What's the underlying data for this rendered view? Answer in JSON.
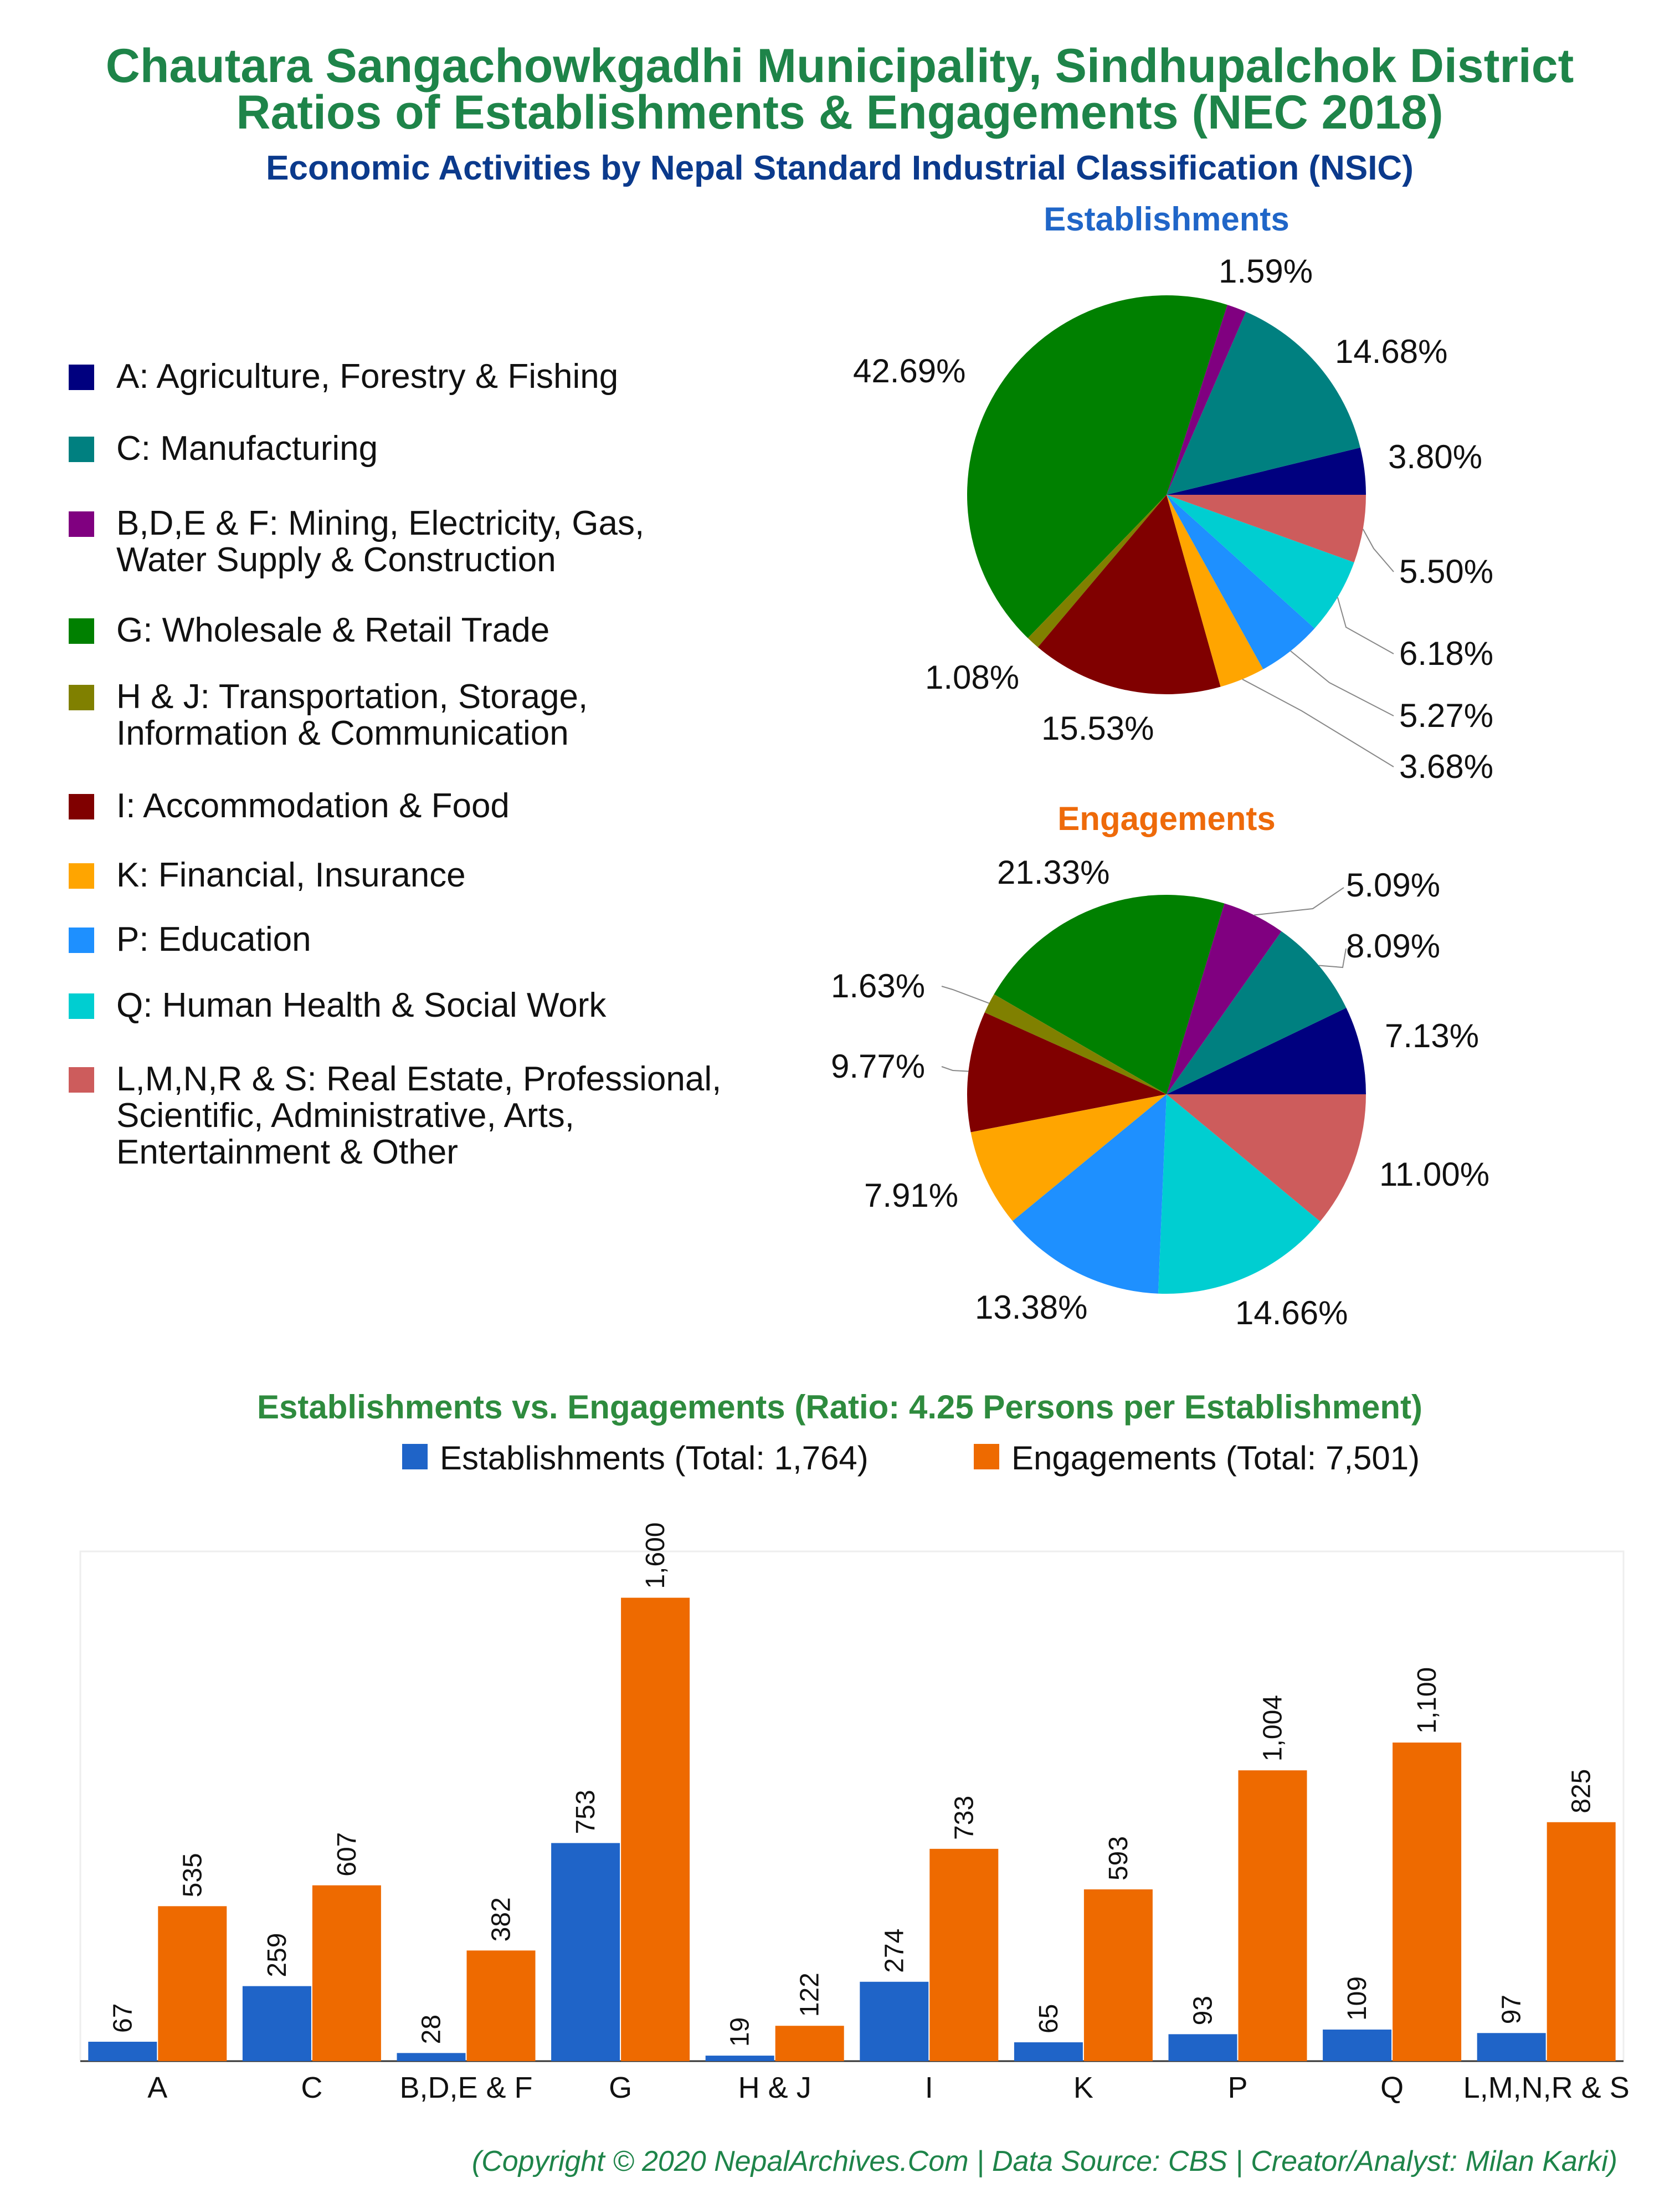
{
  "header": {
    "title_line1": "Chautara Sangachowkgadhi Municipality, Sindhupalchok District",
    "title_line2": "Ratios of Establishments & Engagements (NEC 2018)",
    "subtitle": "Economic Activities by Nepal Standard Industrial Classification (NSIC)"
  },
  "colors": {
    "title": "#1e8449",
    "subtitle": "#0b3a8c",
    "establishments_title": "#2066c8",
    "engagements_title": "#ee6a0a",
    "establishments_bar": "#1f64c8",
    "engagements_bar": "#ee6a00"
  },
  "legend": [
    {
      "label_lines": [
        "A: Agriculture, Forestry & Fishing"
      ],
      "color": "#00007f"
    },
    {
      "label_lines": [
        "C: Manufacturing"
      ],
      "color": "#008080"
    },
    {
      "label_lines": [
        "B,D,E & F: Mining, Electricity, Gas,",
        "Water Supply & Construction"
      ],
      "color": "#800080"
    },
    {
      "label_lines": [
        "G: Wholesale & Retail Trade"
      ],
      "color": "#008000"
    },
    {
      "label_lines": [
        "H & J: Transportation, Storage,",
        "Information & Communication"
      ],
      "color": "#808000"
    },
    {
      "label_lines": [
        "I: Accommodation & Food"
      ],
      "color": "#800000"
    },
    {
      "label_lines": [
        "K: Financial, Insurance"
      ],
      "color": "#ffa500"
    },
    {
      "label_lines": [
        "P: Education"
      ],
      "color": "#1e90ff"
    },
    {
      "label_lines": [
        "Q: Human Health & Social Work"
      ],
      "color": "#00ced1"
    },
    {
      "label_lines": [
        "L,M,N,R & S: Real Estate, Professional,",
        "Scientific, Administrative, Arts,",
        "Entertainment & Other"
      ],
      "color": "#cd5c5c"
    }
  ],
  "chart_data": [
    {
      "type": "pie",
      "title": "Establishments",
      "labels": [
        "A",
        "C",
        "B,D,E & F",
        "G",
        "H & J",
        "I",
        "K",
        "P",
        "Q",
        "L,M,N,R & S"
      ],
      "values": [
        3.8,
        14.68,
        1.59,
        42.69,
        1.08,
        15.53,
        3.68,
        5.27,
        6.18,
        5.5
      ],
      "value_labels": [
        "3.80%",
        "14.68%",
        "1.59%",
        "42.69%",
        "1.08%",
        "15.53%",
        "3.68%",
        "5.27%",
        "6.18%",
        "5.50%"
      ]
    },
    {
      "type": "pie",
      "title": "Engagements",
      "labels": [
        "A",
        "C",
        "B,D,E & F",
        "G",
        "H & J",
        "I",
        "K",
        "P",
        "Q",
        "L,M,N,R & S"
      ],
      "values": [
        7.13,
        8.09,
        5.09,
        21.33,
        1.63,
        9.77,
        7.91,
        13.38,
        14.66,
        11.0
      ],
      "value_labels": [
        "7.13%",
        "8.09%",
        "5.09%",
        "21.33%",
        "1.63%",
        "9.77%",
        "7.91%",
        "13.38%",
        "14.66%",
        "11.00%"
      ]
    },
    {
      "type": "bar",
      "title": "Establishments vs. Engagements (Ratio: 4.25 Persons per Establishment)",
      "categories": [
        "A",
        "C",
        "B,D,E & F",
        "G",
        "H & J",
        "I",
        "K",
        "P",
        "Q",
        "L,M,N,R & S"
      ],
      "series": [
        {
          "name": "Establishments (Total: 1,764)",
          "values": [
            67,
            259,
            28,
            753,
            19,
            274,
            65,
            93,
            109,
            97
          ],
          "value_labels": [
            "67",
            "259",
            "28",
            "753",
            "19",
            "274",
            "65",
            "93",
            "109",
            "97"
          ]
        },
        {
          "name": "Engagements (Total: 7,501)",
          "values": [
            535,
            607,
            382,
            1600,
            122,
            733,
            593,
            1004,
            1100,
            825
          ],
          "value_labels": [
            "535",
            "607",
            "382",
            "1,600",
            "122",
            "733",
            "593",
            "1,004",
            "1,100",
            "825"
          ]
        }
      ],
      "ylim": [
        0,
        1760
      ],
      "legend": "top-right",
      "grid": false
    }
  ],
  "footer": {
    "credit": "(Copyright © 2020 NepalArchives.Com | Data Source: CBS | Creator/Analyst: Milan Karki)"
  }
}
